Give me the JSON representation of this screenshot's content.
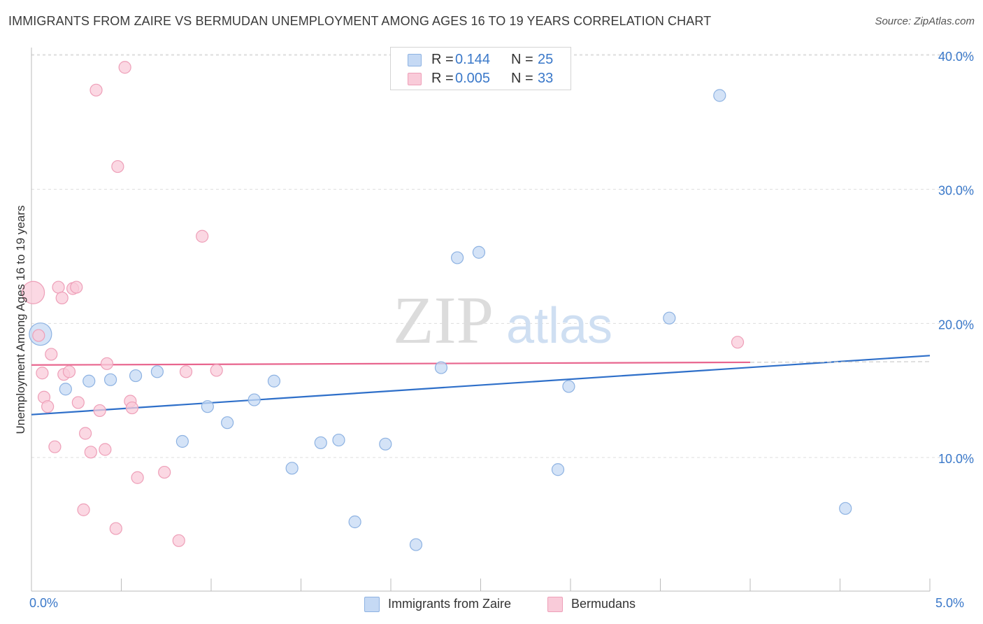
{
  "header": {
    "title": "IMMIGRANTS FROM ZAIRE VS BERMUDAN UNEMPLOYMENT AMONG AGES 16 TO 19 YEARS CORRELATION CHART",
    "source": "Source: ZipAtlas.com"
  },
  "watermark": {
    "zip": "ZIP",
    "atlas": "atlas"
  },
  "legend": {
    "r_label": "R =",
    "n_label": "N =",
    "series": [
      {
        "name": "Immigrants from Zaire",
        "r": "0.144",
        "n": "25"
      },
      {
        "name": "Bermudans",
        "r": "0.005",
        "n": "33"
      }
    ]
  },
  "colors": {
    "blue_fill": "#c5d9f4",
    "blue_stroke": "#8db2e2",
    "blue_line": "#2e6fc9",
    "pink_fill": "#f9cbd9",
    "pink_stroke": "#ee9fb8",
    "pink_line": "#e8658e",
    "tick_text": "#3a78c9",
    "grid": "#dddddd"
  },
  "chart_data": {
    "type": "scatter",
    "title": "IMMIGRANTS FROM ZAIRE VS BERMUDAN UNEMPLOYMENT AMONG AGES 16 TO 19 YEARS CORRELATION CHART",
    "xlabel": "",
    "ylabel": "Unemployment Among Ages 16 to 19 years",
    "xlim": [
      0,
      5
    ],
    "ylim": [
      0,
      40
    ],
    "x_tick_labels": [
      "0.0%",
      "5.0%"
    ],
    "y_ticks": [
      10,
      20,
      30,
      40
    ],
    "y_tick_labels": [
      "10.0%",
      "20.0%",
      "30.0%",
      "40.0%"
    ],
    "series": [
      {
        "name": "Immigrants from Zaire",
        "color": "blue",
        "points": [
          {
            "x": 0.05,
            "y": 19.2,
            "size": "large"
          },
          {
            "x": 0.19,
            "y": 15.1
          },
          {
            "x": 0.32,
            "y": 15.7
          },
          {
            "x": 0.44,
            "y": 15.8
          },
          {
            "x": 0.58,
            "y": 16.1
          },
          {
            "x": 0.7,
            "y": 16.4
          },
          {
            "x": 0.84,
            "y": 11.2
          },
          {
            "x": 0.98,
            "y": 13.8
          },
          {
            "x": 1.09,
            "y": 12.6
          },
          {
            "x": 1.24,
            "y": 14.3
          },
          {
            "x": 1.35,
            "y": 15.7
          },
          {
            "x": 1.45,
            "y": 9.2
          },
          {
            "x": 1.61,
            "y": 11.1
          },
          {
            "x": 1.71,
            "y": 11.3
          },
          {
            "x": 1.8,
            "y": 5.2
          },
          {
            "x": 1.97,
            "y": 11.0
          },
          {
            "x": 2.14,
            "y": 3.5
          },
          {
            "x": 2.28,
            "y": 16.7
          },
          {
            "x": 2.37,
            "y": 24.9
          },
          {
            "x": 2.49,
            "y": 25.3
          },
          {
            "x": 2.93,
            "y": 9.1
          },
          {
            "x": 2.99,
            "y": 15.3
          },
          {
            "x": 3.55,
            "y": 20.4
          },
          {
            "x": 3.83,
            "y": 37.0
          },
          {
            "x": 4.53,
            "y": 6.2
          }
        ],
        "trendline": {
          "x": [
            0,
            5
          ],
          "y": [
            13.2,
            17.6
          ]
        }
      },
      {
        "name": "Bermudans",
        "color": "pink",
        "points": [
          {
            "x": 0.01,
            "y": 22.3,
            "size": "large"
          },
          {
            "x": 0.04,
            "y": 19.1
          },
          {
            "x": 0.06,
            "y": 16.3
          },
          {
            "x": 0.07,
            "y": 14.5
          },
          {
            "x": 0.09,
            "y": 13.8
          },
          {
            "x": 0.11,
            "y": 17.7
          },
          {
            "x": 0.13,
            "y": 10.8
          },
          {
            "x": 0.15,
            "y": 22.7
          },
          {
            "x": 0.17,
            "y": 21.9
          },
          {
            "x": 0.18,
            "y": 16.2
          },
          {
            "x": 0.21,
            "y": 16.4
          },
          {
            "x": 0.23,
            "y": 22.6
          },
          {
            "x": 0.25,
            "y": 22.7
          },
          {
            "x": 0.26,
            "y": 14.1
          },
          {
            "x": 0.29,
            "y": 6.1
          },
          {
            "x": 0.3,
            "y": 11.8
          },
          {
            "x": 0.33,
            "y": 10.4
          },
          {
            "x": 0.36,
            "y": 37.4
          },
          {
            "x": 0.38,
            "y": 13.5
          },
          {
            "x": 0.41,
            "y": 10.6
          },
          {
            "x": 0.42,
            "y": 17.0
          },
          {
            "x": 0.47,
            "y": 4.7
          },
          {
            "x": 0.48,
            "y": 31.7
          },
          {
            "x": 0.52,
            "y": 39.1
          },
          {
            "x": 0.55,
            "y": 14.2
          },
          {
            "x": 0.56,
            "y": 13.7
          },
          {
            "x": 0.59,
            "y": 8.5
          },
          {
            "x": 0.74,
            "y": 8.9
          },
          {
            "x": 0.82,
            "y": 3.8
          },
          {
            "x": 0.86,
            "y": 16.4
          },
          {
            "x": 0.95,
            "y": 26.5
          },
          {
            "x": 1.03,
            "y": 16.5
          },
          {
            "x": 3.93,
            "y": 18.6
          }
        ],
        "trendline": {
          "x": [
            0,
            4
          ],
          "y": [
            16.9,
            17.1
          ],
          "dashed_extension_to": 5
        }
      }
    ]
  }
}
